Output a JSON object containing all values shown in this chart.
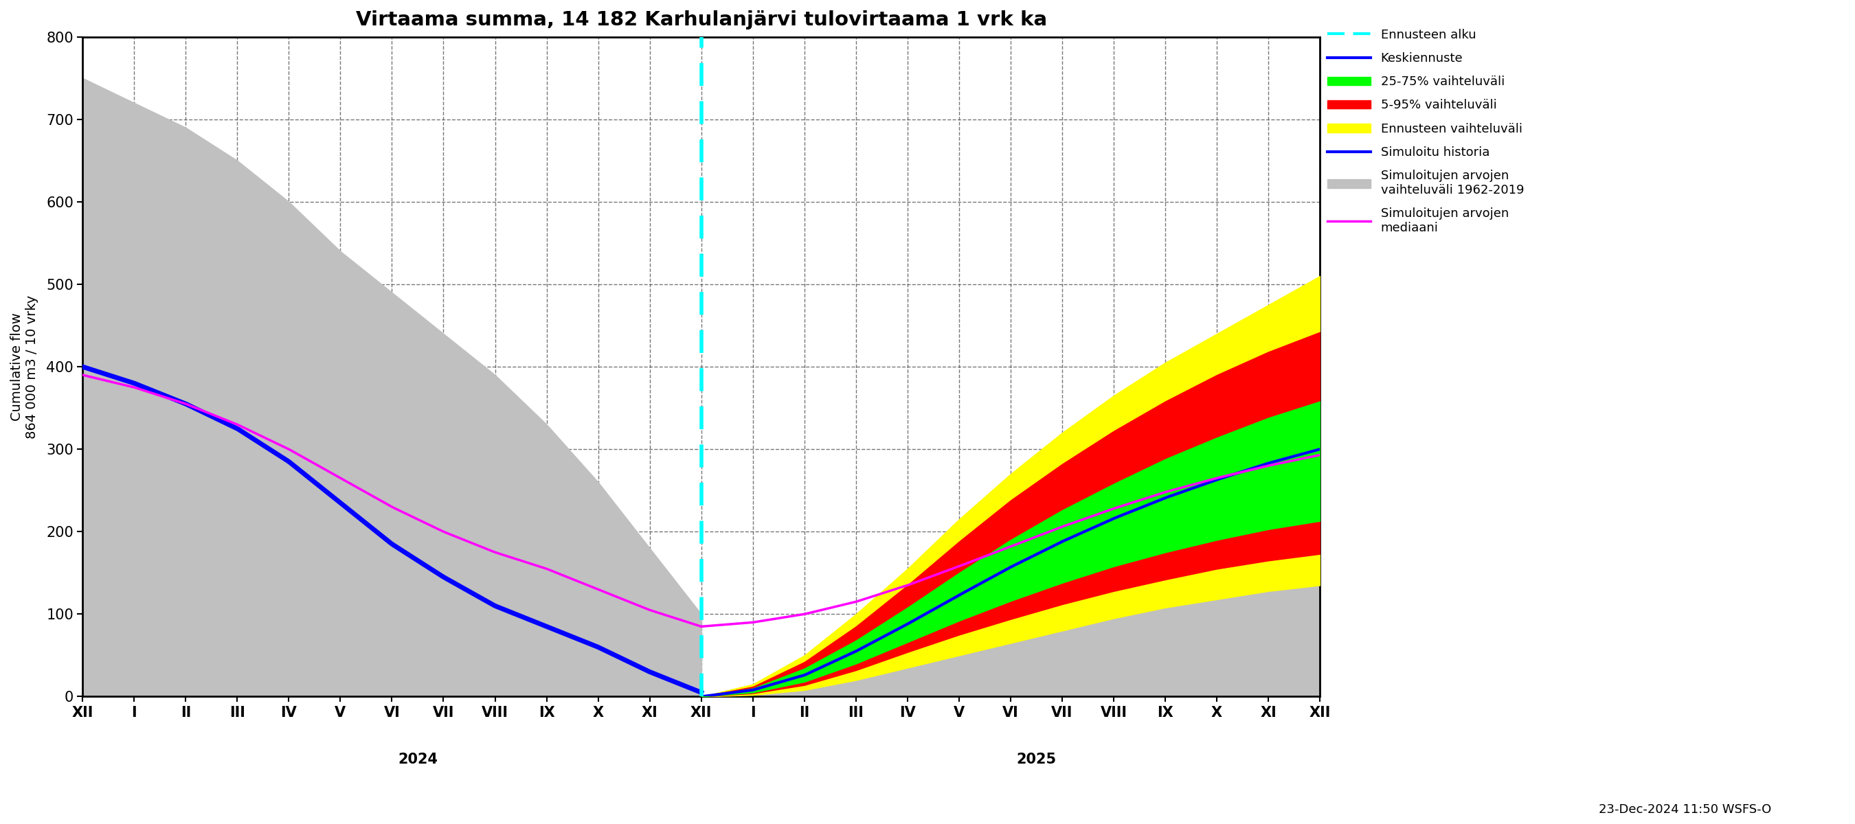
{
  "title": "Virtaama summa, 14 182 Karhulanjärvi tulovirtaama 1 vrk ka",
  "ylabel": "Cumulative flow\n864 000 m3 / 10 vrky",
  "ylim": [
    0,
    800
  ],
  "timestamp_label": "23-Dec-2024 11:50 WSFS-O",
  "colors": {
    "cyan": "#00FFFF",
    "blue": "#0000FF",
    "green": "#00FF00",
    "red": "#FF0000",
    "yellow": "#FFFF00",
    "gray": "#C0C0C0",
    "magenta": "#FF00FF"
  },
  "background_color": "#FFFFFF",
  "forecast_x": 12,
  "x_min": 0,
  "x_max": 24,
  "past_blue_pts": [
    [
      0,
      400
    ],
    [
      1,
      380
    ],
    [
      2,
      355
    ],
    [
      3,
      325
    ],
    [
      4,
      285
    ],
    [
      5,
      235
    ],
    [
      6,
      185
    ],
    [
      7,
      145
    ],
    [
      8,
      110
    ],
    [
      9,
      85
    ],
    [
      10,
      60
    ],
    [
      11,
      30
    ],
    [
      12,
      5
    ]
  ],
  "past_magenta_pts": [
    [
      0,
      390
    ],
    [
      1,
      375
    ],
    [
      2,
      355
    ],
    [
      3,
      330
    ],
    [
      4,
      300
    ],
    [
      5,
      265
    ],
    [
      6,
      230
    ],
    [
      7,
      200
    ],
    [
      8,
      175
    ],
    [
      9,
      155
    ],
    [
      10,
      130
    ],
    [
      11,
      105
    ],
    [
      12,
      85
    ]
  ],
  "gray_upper_past_pts": [
    [
      0,
      750
    ],
    [
      1,
      720
    ],
    [
      2,
      690
    ],
    [
      3,
      650
    ],
    [
      4,
      600
    ],
    [
      5,
      540
    ],
    [
      6,
      490
    ],
    [
      7,
      440
    ],
    [
      8,
      390
    ],
    [
      9,
      330
    ],
    [
      10,
      260
    ],
    [
      11,
      180
    ],
    [
      12,
      100
    ]
  ],
  "gray_lower_past_pts": [
    [
      0,
      0
    ],
    [
      1,
      0
    ],
    [
      2,
      0
    ],
    [
      3,
      0
    ],
    [
      4,
      0
    ],
    [
      5,
      0
    ],
    [
      6,
      0
    ],
    [
      7,
      0
    ],
    [
      8,
      0
    ],
    [
      9,
      0
    ],
    [
      10,
      0
    ],
    [
      11,
      0
    ],
    [
      12,
      0
    ]
  ],
  "gray_upper_future_pts": [
    [
      12,
      0
    ],
    [
      13,
      5
    ],
    [
      14,
      20
    ],
    [
      15,
      50
    ],
    [
      16,
      90
    ],
    [
      17,
      130
    ],
    [
      18,
      170
    ],
    [
      19,
      210
    ],
    [
      20,
      250
    ],
    [
      21,
      290
    ],
    [
      22,
      330
    ],
    [
      23,
      365
    ],
    [
      24,
      395
    ]
  ],
  "gray_lower_future_pts": [
    [
      12,
      0
    ],
    [
      13,
      0
    ],
    [
      14,
      0
    ],
    [
      15,
      0
    ],
    [
      16,
      0
    ],
    [
      17,
      0
    ],
    [
      18,
      0
    ],
    [
      19,
      0
    ],
    [
      20,
      0
    ],
    [
      21,
      0
    ],
    [
      22,
      0
    ],
    [
      23,
      0
    ],
    [
      24,
      0
    ]
  ],
  "yellow_upper_pts": [
    [
      12,
      0
    ],
    [
      13,
      15
    ],
    [
      14,
      50
    ],
    [
      15,
      100
    ],
    [
      16,
      155
    ],
    [
      17,
      215
    ],
    [
      18,
      270
    ],
    [
      19,
      320
    ],
    [
      20,
      365
    ],
    [
      21,
      405
    ],
    [
      22,
      440
    ],
    [
      23,
      475
    ],
    [
      24,
      510
    ]
  ],
  "yellow_lower_pts": [
    [
      12,
      0
    ],
    [
      13,
      2
    ],
    [
      14,
      8
    ],
    [
      15,
      20
    ],
    [
      16,
      35
    ],
    [
      17,
      50
    ],
    [
      18,
      65
    ],
    [
      19,
      80
    ],
    [
      20,
      95
    ],
    [
      21,
      108
    ],
    [
      22,
      118
    ],
    [
      23,
      128
    ],
    [
      24,
      135
    ]
  ],
  "red_upper_pts": [
    [
      12,
      0
    ],
    [
      13,
      12
    ],
    [
      14,
      42
    ],
    [
      15,
      85
    ],
    [
      16,
      135
    ],
    [
      17,
      188
    ],
    [
      18,
      238
    ],
    [
      19,
      282
    ],
    [
      20,
      322
    ],
    [
      21,
      358
    ],
    [
      22,
      390
    ],
    [
      23,
      418
    ],
    [
      24,
      442
    ]
  ],
  "red_lower_pts": [
    [
      12,
      0
    ],
    [
      13,
      4
    ],
    [
      14,
      14
    ],
    [
      15,
      32
    ],
    [
      16,
      54
    ],
    [
      17,
      75
    ],
    [
      18,
      94
    ],
    [
      19,
      112
    ],
    [
      20,
      128
    ],
    [
      21,
      142
    ],
    [
      22,
      155
    ],
    [
      23,
      165
    ],
    [
      24,
      173
    ]
  ],
  "green_upper_pts": [
    [
      12,
      0
    ],
    [
      13,
      10
    ],
    [
      14,
      34
    ],
    [
      15,
      68
    ],
    [
      16,
      108
    ],
    [
      17,
      150
    ],
    [
      18,
      190
    ],
    [
      19,
      226
    ],
    [
      20,
      258
    ],
    [
      21,
      288
    ],
    [
      22,
      314
    ],
    [
      23,
      338
    ],
    [
      24,
      358
    ]
  ],
  "green_lower_pts": [
    [
      12,
      0
    ],
    [
      13,
      5
    ],
    [
      14,
      18
    ],
    [
      15,
      40
    ],
    [
      16,
      66
    ],
    [
      17,
      92
    ],
    [
      18,
      116
    ],
    [
      19,
      138
    ],
    [
      20,
      158
    ],
    [
      21,
      175
    ],
    [
      22,
      190
    ],
    [
      23,
      203
    ],
    [
      24,
      213
    ]
  ],
  "blue_forecast_pts": [
    [
      12,
      0
    ],
    [
      13,
      8
    ],
    [
      14,
      26
    ],
    [
      15,
      55
    ],
    [
      16,
      88
    ],
    [
      17,
      123
    ],
    [
      18,
      157
    ],
    [
      19,
      188
    ],
    [
      20,
      216
    ],
    [
      21,
      241
    ],
    [
      22,
      263
    ],
    [
      23,
      283
    ],
    [
      24,
      300
    ]
  ],
  "magenta_future_pts": [
    [
      12,
      85
    ],
    [
      13,
      90
    ],
    [
      14,
      100
    ],
    [
      15,
      115
    ],
    [
      16,
      135
    ],
    [
      17,
      158
    ],
    [
      18,
      182
    ],
    [
      19,
      206
    ],
    [
      20,
      228
    ],
    [
      21,
      248
    ],
    [
      22,
      265
    ],
    [
      23,
      280
    ],
    [
      24,
      293
    ]
  ],
  "month_ticks": [
    0,
    1,
    2,
    3,
    4,
    5,
    6,
    7,
    8,
    9,
    10,
    11,
    12,
    13,
    14,
    15,
    16,
    17,
    18,
    19,
    20,
    21,
    22,
    23,
    24
  ],
  "month_labels": [
    "XII",
    "I",
    "II",
    "III",
    "IV",
    "V",
    "VI",
    "VII",
    "VIII",
    "IX",
    "X",
    "XI",
    "XII",
    "I",
    "II",
    "III",
    "IV",
    "V",
    "VI",
    "VII",
    "VIII",
    "IX",
    "X",
    "XI",
    "XII"
  ],
  "year_2024_x": 6.5,
  "year_2025_x": 18.5
}
